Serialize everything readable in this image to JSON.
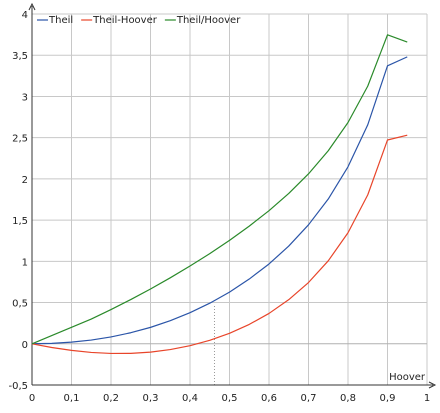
{
  "chart_data": {
    "type": "line",
    "xlabel": "Hoover",
    "ylabel": "",
    "xlim": [
      0,
      1
    ],
    "ylim": [
      -0.5,
      4
    ],
    "grid": true,
    "legend_position": "top-left",
    "x_ticks": [
      "0",
      "0,1",
      "0,2",
      "0,3",
      "0,4",
      "0,5",
      "0,6",
      "0,7",
      "0,8",
      "0,9",
      "1"
    ],
    "y_ticks": [
      "-0,5",
      "0",
      "0,5",
      "1",
      "1,5",
      "2",
      "2,5",
      "3",
      "3,5",
      "4"
    ],
    "reference_line": {
      "x": 0.462,
      "y_from": -0.5,
      "y_to": 0.462
    },
    "series": [
      {
        "name": "Theil",
        "color": "#2b55a8",
        "x": [
          0,
          0.05,
          0.1,
          0.15,
          0.2,
          0.25,
          0.3,
          0.35,
          0.4,
          0.45,
          0.5,
          0.55,
          0.6,
          0.65,
          0.7,
          0.75,
          0.8,
          0.85,
          0.9,
          0.95
        ],
        "y": [
          0,
          0.005,
          0.02,
          0.045,
          0.083,
          0.134,
          0.199,
          0.28,
          0.377,
          0.492,
          0.627,
          0.785,
          0.968,
          1.185,
          1.443,
          1.756,
          2.147,
          2.656,
          3.372,
          3.48
        ]
      },
      {
        "name": "Theil-Hoover",
        "color": "#e8452a",
        "x": [
          0,
          0.05,
          0.1,
          0.15,
          0.2,
          0.25,
          0.3,
          0.35,
          0.4,
          0.45,
          0.5,
          0.55,
          0.6,
          0.65,
          0.7,
          0.75,
          0.8,
          0.85,
          0.9,
          0.95
        ],
        "y": [
          0,
          -0.045,
          -0.08,
          -0.105,
          -0.117,
          -0.116,
          -0.101,
          -0.07,
          -0.023,
          0.042,
          0.127,
          0.235,
          0.368,
          0.535,
          0.743,
          1.006,
          1.347,
          1.806,
          2.472,
          2.53
        ]
      },
      {
        "name": "Theil/Hoover",
        "color": "#2a8a2a",
        "x": [
          0.0001,
          0.05,
          0.1,
          0.15,
          0.2,
          0.25,
          0.3,
          0.35,
          0.4,
          0.45,
          0.5,
          0.55,
          0.6,
          0.65,
          0.7,
          0.75,
          0.8,
          0.85,
          0.9,
          0.95
        ],
        "y": [
          0,
          0.1,
          0.2,
          0.3,
          0.415,
          0.536,
          0.664,
          0.8,
          0.943,
          1.093,
          1.254,
          1.427,
          1.614,
          1.823,
          2.061,
          2.341,
          2.684,
          3.125,
          3.747,
          3.66
        ]
      }
    ]
  }
}
